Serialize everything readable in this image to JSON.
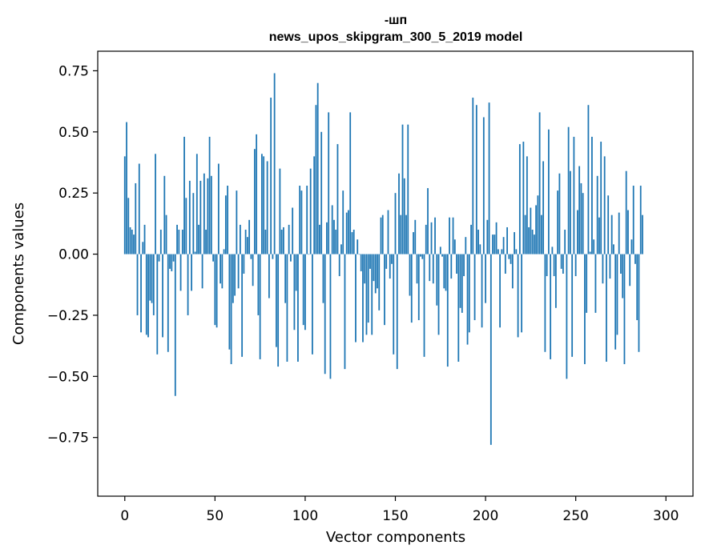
{
  "chart_data": {
    "type": "bar",
    "title_line1": "-шп",
    "title_line2": "news_upos_skipgram_300_5_2019 model",
    "xlabel": "Vector components",
    "ylabel": "Components values",
    "xlim": [
      -15,
      315
    ],
    "ylim": [
      -0.99,
      0.83
    ],
    "xticks": [
      0,
      50,
      100,
      150,
      200,
      250,
      300
    ],
    "xtick_labels": [
      "0",
      "50",
      "100",
      "150",
      "200",
      "250",
      "300"
    ],
    "yticks": [
      0.75,
      0.5,
      0.25,
      0.0,
      -0.25,
      -0.5,
      -0.75
    ],
    "ytick_labels": [
      "0.75",
      "0.50",
      "0.25",
      "0.00",
      "−0.25",
      "−0.50",
      "−0.75"
    ],
    "bar_color": "#1f77b4",
    "values": [
      0.4,
      0.54,
      0.23,
      0.11,
      0.1,
      0.08,
      0.29,
      -0.25,
      0.37,
      -0.32,
      0.05,
      0.12,
      -0.33,
      -0.34,
      -0.19,
      -0.2,
      -0.25,
      0.41,
      -0.41,
      -0.03,
      0.1,
      -0.34,
      0.32,
      0.16,
      -0.4,
      -0.06,
      -0.07,
      -0.03,
      -0.58,
      0.12,
      0.1,
      -0.15,
      0.1,
      0.48,
      0.23,
      -0.25,
      0.3,
      -0.15,
      0.25,
      0.01,
      0.41,
      0.12,
      0.3,
      -0.14,
      0.33,
      0.1,
      0.31,
      0.48,
      0.32,
      -0.03,
      -0.29,
      -0.3,
      0.37,
      -0.12,
      -0.14,
      0.02,
      0.24,
      0.28,
      -0.39,
      -0.45,
      -0.2,
      -0.17,
      0.26,
      -0.14,
      0.12,
      -0.42,
      -0.08,
      0.1,
      0.07,
      0.14,
      -0.02,
      -0.13,
      0.43,
      0.49,
      -0.25,
      -0.43,
      0.41,
      0.4,
      0.1,
      0.38,
      -0.18,
      0.64,
      -0.02,
      0.74,
      -0.38,
      -0.46,
      0.35,
      0.1,
      0.11,
      -0.2,
      -0.44,
      0.12,
      -0.03,
      0.19,
      -0.31,
      -0.15,
      -0.44,
      0.28,
      0.26,
      -0.29,
      -0.31,
      0.28,
      0.0,
      0.35,
      -0.41,
      0.4,
      0.61,
      0.7,
      0.12,
      0.5,
      -0.2,
      -0.49,
      0.13,
      0.58,
      -0.51,
      0.2,
      0.14,
      0.1,
      0.45,
      -0.09,
      0.04,
      0.26,
      -0.47,
      0.17,
      0.18,
      0.58,
      0.09,
      0.1,
      -0.36,
      0.06,
      0.0,
      -0.07,
      -0.36,
      -0.12,
      -0.33,
      -0.28,
      -0.06,
      -0.33,
      -0.11,
      -0.16,
      -0.14,
      -0.23,
      0.15,
      0.16,
      -0.29,
      -0.06,
      0.18,
      -0.1,
      -0.04,
      -0.41,
      0.25,
      -0.47,
      0.33,
      0.16,
      0.53,
      0.31,
      0.16,
      0.53,
      -0.17,
      -0.28,
      0.09,
      0.14,
      -0.12,
      -0.27,
      -0.01,
      -0.02,
      -0.42,
      0.12,
      0.27,
      -0.11,
      0.13,
      -0.12,
      0.15,
      -0.21,
      -0.33,
      0.03,
      -0.01,
      -0.14,
      -0.15,
      -0.46,
      0.15,
      -0.1,
      0.15,
      0.06,
      -0.08,
      -0.44,
      -0.22,
      -0.24,
      -0.09,
      0.07,
      -0.37,
      -0.32,
      0.12,
      0.64,
      -0.27,
      0.61,
      0.1,
      0.04,
      -0.3,
      0.56,
      -0.2,
      0.14,
      0.62,
      -0.78,
      0.08,
      0.08,
      0.13,
      0.02,
      -0.3,
      0.02,
      0.07,
      -0.08,
      0.11,
      -0.02,
      -0.04,
      -0.14,
      0.09,
      0.02,
      -0.34,
      0.45,
      -0.32,
      0.46,
      0.16,
      0.4,
      0.11,
      0.19,
      0.1,
      0.08,
      0.2,
      0.24,
      0.58,
      0.16,
      0.38,
      -0.4,
      -0.09,
      0.51,
      -0.43,
      0.03,
      -0.09,
      -0.22,
      0.26,
      0.33,
      -0.06,
      -0.08,
      0.1,
      -0.51,
      0.52,
      0.34,
      -0.42,
      0.48,
      -0.09,
      0.18,
      0.36,
      0.29,
      0.25,
      -0.45,
      -0.24,
      0.61,
      0.01,
      0.48,
      0.06,
      -0.24,
      0.32,
      0.15,
      0.46,
      -0.12,
      0.4,
      -0.44,
      0.24,
      -0.1,
      0.16,
      0.04,
      -0.39,
      -0.33,
      0.17,
      -0.08,
      -0.18,
      -0.45,
      0.34,
      0.18,
      -0.13,
      0.06,
      0.28,
      -0.04,
      -0.27,
      -0.4,
      0.28,
      0.16
    ]
  }
}
